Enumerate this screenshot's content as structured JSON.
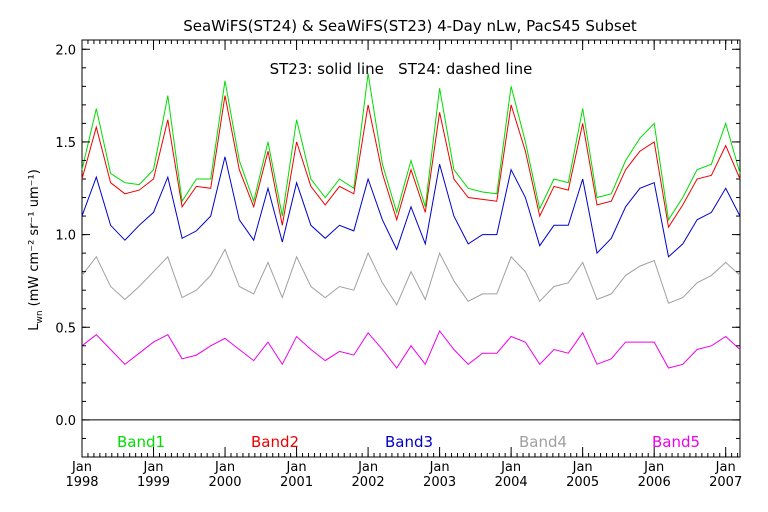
{
  "chart_data": {
    "type": "line",
    "title": "SeaWiFS(ST24) & SeaWiFS(ST23) 4-Day nLw, PacS45 Subset",
    "annotation": "ST23: solid line   ST24: dashed line",
    "ylabel": "L",
    "ylabel_sub": "wn",
    "ylabel_units": "(mW cm⁻² sr⁻¹ um⁻¹)",
    "xlim": [
      1998.0,
      2007.2
    ],
    "ylim": [
      -0.2,
      2.05
    ],
    "x_ticks": [
      {
        "value": 1998,
        "month": "Jan",
        "year": "1998"
      },
      {
        "value": 1999,
        "month": "Jan",
        "year": "1999"
      },
      {
        "value": 2000,
        "month": "Jan",
        "year": "2000"
      },
      {
        "value": 2001,
        "month": "Jan",
        "year": "2001"
      },
      {
        "value": 2002,
        "month": "Jan",
        "year": "2002"
      },
      {
        "value": 2003,
        "month": "Jan",
        "year": "2003"
      },
      {
        "value": 2004,
        "month": "Jan",
        "year": "2004"
      },
      {
        "value": 2005,
        "month": "Jan",
        "year": "2005"
      },
      {
        "value": 2006,
        "month": "Jan",
        "year": "2006"
      },
      {
        "value": 2007,
        "month": "Jan",
        "year": "2007"
      }
    ],
    "y_ticks": [
      {
        "value": 0.0,
        "label": "0.0"
      },
      {
        "value": 0.5,
        "label": "0.5"
      },
      {
        "value": 1.0,
        "label": "1.0"
      },
      {
        "value": 1.5,
        "label": "1.5"
      },
      {
        "value": 2.0,
        "label": "2.0"
      }
    ],
    "zero_line": 0.0,
    "x": [
      1998.0,
      1998.2,
      1998.4,
      1998.6,
      1998.8,
      1999.0,
      1999.2,
      1999.4,
      1999.6,
      1999.8,
      2000.0,
      2000.2,
      2000.4,
      2000.6,
      2000.8,
      2001.0,
      2001.2,
      2001.4,
      2001.6,
      2001.8,
      2002.0,
      2002.2,
      2002.4,
      2002.6,
      2002.8,
      2003.0,
      2003.2,
      2003.4,
      2003.6,
      2003.8,
      2004.0,
      2004.2,
      2004.4,
      2004.6,
      2004.8,
      2005.0,
      2005.2,
      2005.4,
      2005.6,
      2005.8,
      2006.0,
      2006.2,
      2006.4,
      2006.6,
      2006.8,
      2007.0,
      2007.2
    ],
    "series": [
      {
        "name": "Band1",
        "color": "#00dd00",
        "values": [
          1.35,
          1.68,
          1.33,
          1.28,
          1.27,
          1.35,
          1.75,
          1.18,
          1.3,
          1.3,
          1.83,
          1.4,
          1.18,
          1.5,
          1.1,
          1.62,
          1.3,
          1.2,
          1.3,
          1.25,
          1.87,
          1.38,
          1.12,
          1.4,
          1.15,
          1.79,
          1.35,
          1.25,
          1.23,
          1.22,
          1.8,
          1.5,
          1.14,
          1.3,
          1.28,
          1.68,
          1.2,
          1.22,
          1.4,
          1.52,
          1.6,
          1.08,
          1.2,
          1.35,
          1.38,
          1.6,
          1.33
        ]
      },
      {
        "name": "Band2",
        "color": "#ee0000",
        "values": [
          1.3,
          1.58,
          1.28,
          1.22,
          1.24,
          1.3,
          1.62,
          1.15,
          1.26,
          1.25,
          1.75,
          1.35,
          1.15,
          1.45,
          1.05,
          1.5,
          1.26,
          1.16,
          1.26,
          1.22,
          1.7,
          1.33,
          1.08,
          1.35,
          1.12,
          1.66,
          1.3,
          1.2,
          1.19,
          1.18,
          1.7,
          1.45,
          1.1,
          1.26,
          1.24,
          1.6,
          1.16,
          1.18,
          1.35,
          1.45,
          1.5,
          1.04,
          1.16,
          1.3,
          1.32,
          1.48,
          1.3
        ]
      },
      {
        "name": "Band3",
        "color": "#0000cc",
        "values": [
          1.1,
          1.31,
          1.05,
          0.97,
          1.05,
          1.12,
          1.31,
          0.98,
          1.02,
          1.1,
          1.42,
          1.08,
          0.97,
          1.25,
          0.96,
          1.28,
          1.05,
          0.98,
          1.05,
          1.02,
          1.3,
          1.08,
          0.92,
          1.15,
          0.95,
          1.38,
          1.1,
          0.95,
          1.0,
          1.0,
          1.35,
          1.2,
          0.94,
          1.05,
          1.05,
          1.3,
          0.9,
          0.98,
          1.15,
          1.25,
          1.28,
          0.88,
          0.95,
          1.08,
          1.12,
          1.25,
          1.1
        ]
      },
      {
        "name": "Band4",
        "color": "#a0a0a0",
        "values": [
          0.78,
          0.88,
          0.72,
          0.65,
          0.72,
          0.8,
          0.88,
          0.66,
          0.7,
          0.78,
          0.92,
          0.72,
          0.68,
          0.85,
          0.66,
          0.88,
          0.72,
          0.66,
          0.72,
          0.7,
          0.9,
          0.74,
          0.62,
          0.8,
          0.65,
          0.9,
          0.75,
          0.64,
          0.68,
          0.68,
          0.88,
          0.8,
          0.64,
          0.72,
          0.74,
          0.85,
          0.65,
          0.68,
          0.78,
          0.83,
          0.86,
          0.63,
          0.66,
          0.74,
          0.78,
          0.85,
          0.78
        ]
      },
      {
        "name": "Band5",
        "color": "#ee00ee",
        "values": [
          0.4,
          0.46,
          0.38,
          0.3,
          0.36,
          0.42,
          0.46,
          0.33,
          0.35,
          0.4,
          0.44,
          0.38,
          0.32,
          0.42,
          0.3,
          0.45,
          0.38,
          0.32,
          0.37,
          0.35,
          0.47,
          0.38,
          0.28,
          0.4,
          0.3,
          0.48,
          0.38,
          0.3,
          0.36,
          0.36,
          0.45,
          0.42,
          0.3,
          0.38,
          0.36,
          0.47,
          0.3,
          0.33,
          0.42,
          0.42,
          0.42,
          0.28,
          0.3,
          0.38,
          0.4,
          0.45,
          0.38
        ]
      }
    ]
  }
}
